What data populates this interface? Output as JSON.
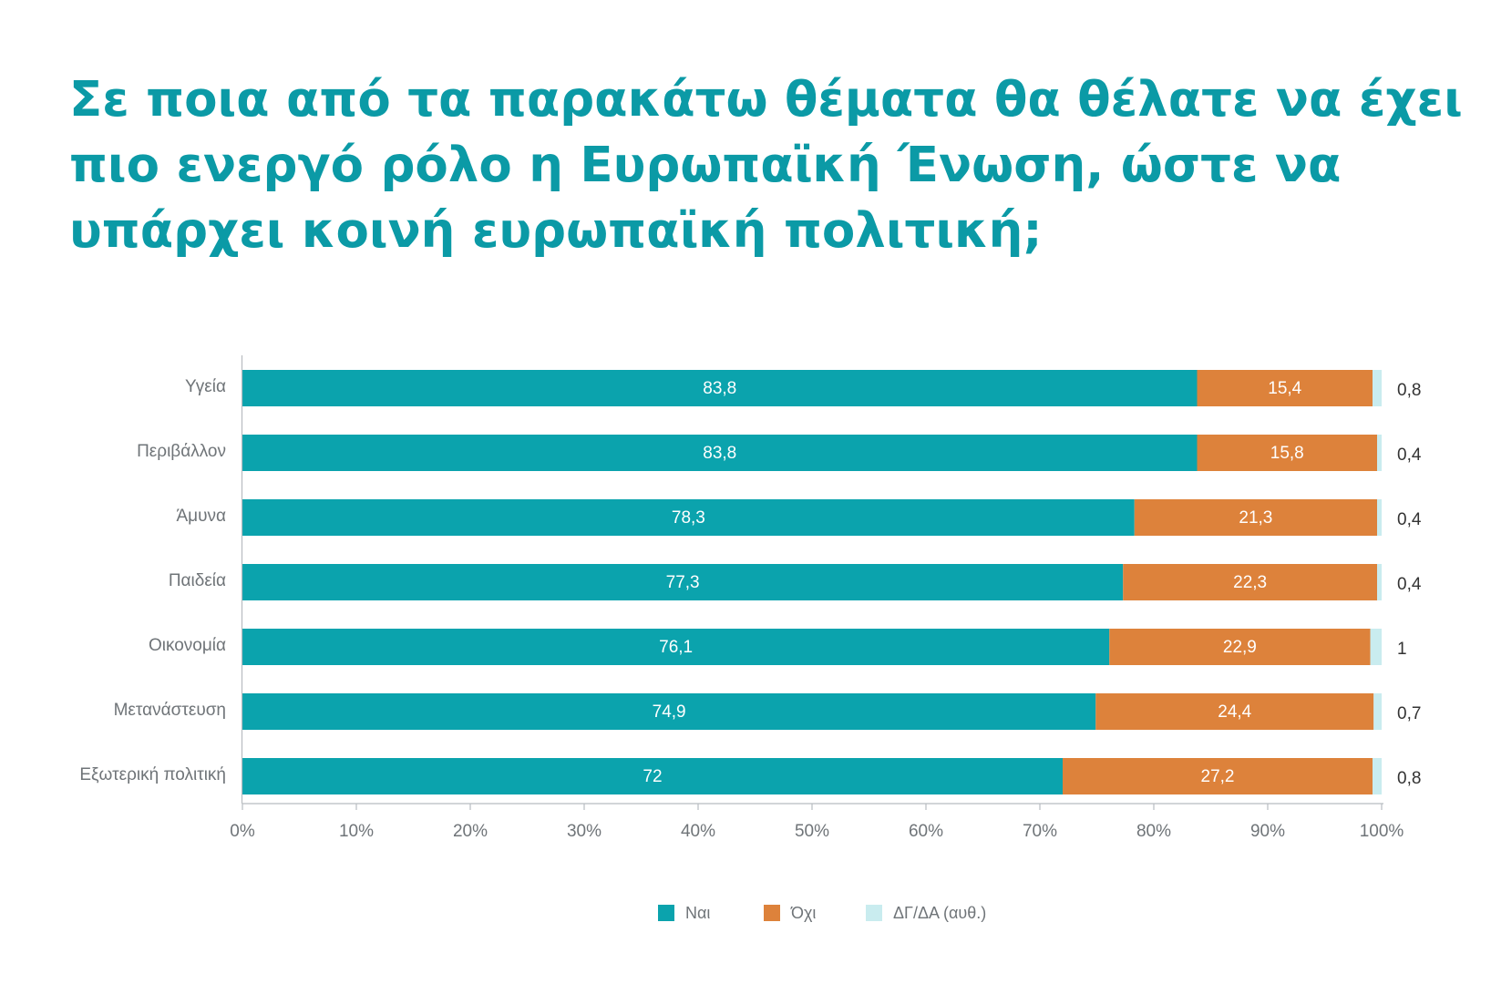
{
  "title_lines": [
    "Σε ποια από τα παρακάτω θέματα θα θέλατε να έχει",
    "πιο ενεργό ρόλο η Ευρωπαϊκή Ένωση, ώστε να",
    "υπάρχει κοινή ευρωπαϊκή πολιτική;"
  ],
  "colors": {
    "title": "#0b9aa6",
    "yes": "#0ba3ad",
    "no": "#dd823b",
    "dk": "#c9ecef",
    "axis_text": "#6f7478",
    "grid": "#b8bcc0"
  },
  "chart_data": {
    "type": "bar",
    "orientation": "horizontal",
    "stacked": true,
    "title": "Σε ποια από τα παρακάτω θέματα θα θέλατε να έχει πιο ενεργό ρόλο η Ευρωπαϊκή Ένωση, ώστε να υπάρχει κοινή ευρωπαϊκή πολιτική;",
    "categories": [
      "Υγεία",
      "Περιβάλλον",
      "Άμυνα",
      "Παιδεία",
      "Οικονομία",
      "Μετανάστευση",
      "Εξωτερική πολιτική"
    ],
    "series": [
      {
        "name": "Ναι",
        "color": "#0ba3ad",
        "values": [
          83.8,
          83.8,
          78.3,
          77.3,
          76.1,
          74.9,
          72
        ],
        "labels": [
          "83,8",
          "83,8",
          "78,3",
          "77,3",
          "76,1",
          "74,9",
          "72"
        ]
      },
      {
        "name": "Όχι",
        "color": "#dd823b",
        "values": [
          15.4,
          15.8,
          21.3,
          22.3,
          22.9,
          24.4,
          27.2
        ],
        "labels": [
          "15,4",
          "15,8",
          "21,3",
          "22,3",
          "22,9",
          "24,4",
          "27,2"
        ]
      },
      {
        "name": "ΔΓ/ΔΑ (αυθ.)",
        "color": "#c9ecef",
        "values": [
          0.8,
          0.4,
          0.4,
          0.4,
          1,
          0.7,
          0.8
        ],
        "labels": [
          "0,8",
          "0,4",
          "0,4",
          "0,4",
          "1",
          "0,7",
          "0,8"
        ]
      }
    ],
    "xlim": [
      0,
      100
    ],
    "xticks": [
      "0%",
      "10%",
      "20%",
      "30%",
      "40%",
      "50%",
      "60%",
      "70%",
      "80%",
      "90%",
      "100%"
    ],
    "grid": false,
    "legend_position": "bottom-center"
  }
}
